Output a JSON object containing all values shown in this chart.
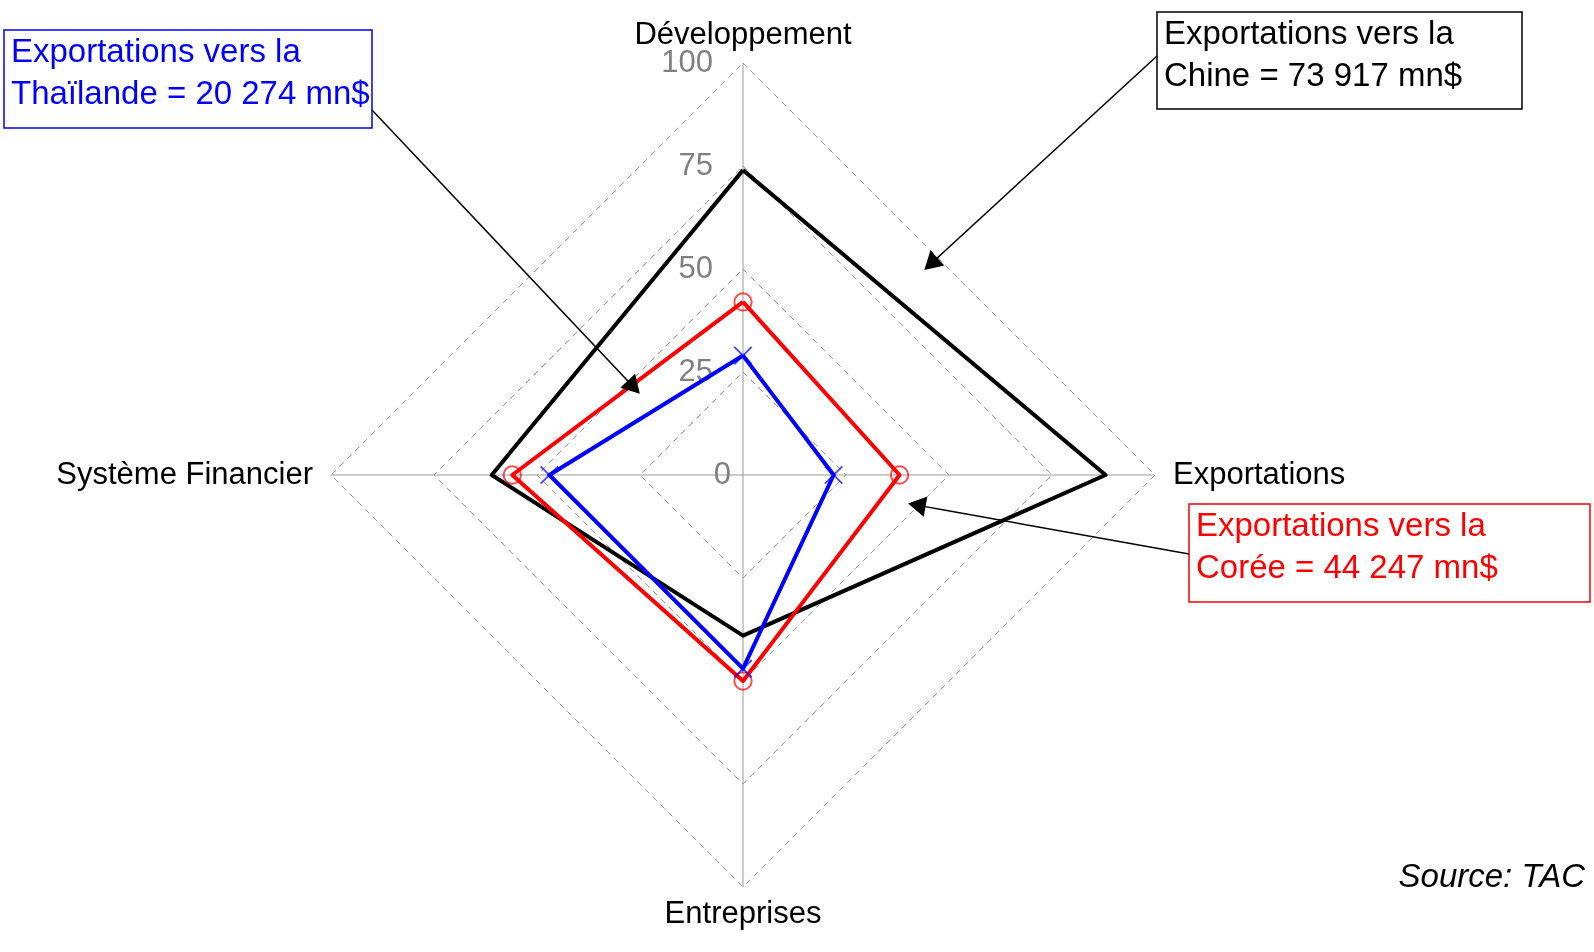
{
  "chart_data": {
    "type": "radar",
    "categories": [
      "Développement",
      "Exportations",
      "Entreprises",
      "Système Financier"
    ],
    "ylim": [
      0,
      100
    ],
    "yticks": [
      0,
      25,
      50,
      75,
      100
    ],
    "grid": true,
    "line_style": "solid",
    "series": [
      {
        "name": "Exportations vers la\nChine = 73 917 mn$",
        "color": "#000000",
        "marker": "none",
        "values": [
          74,
          88,
          39,
          61
        ]
      },
      {
        "name": "Exportations vers la\nCorée = 44 247 mn$",
        "color": "#ff0000",
        "marker": "circle",
        "values": [
          42,
          38,
          50,
          56
        ]
      },
      {
        "name": "Exportations vers la\nThaïlande = 20 274 mn$",
        "color": "#0000ff",
        "marker": "cross",
        "values": [
          29,
          22,
          47,
          47
        ]
      }
    ],
    "annotations": [
      "Source: TAC"
    ]
  }
}
